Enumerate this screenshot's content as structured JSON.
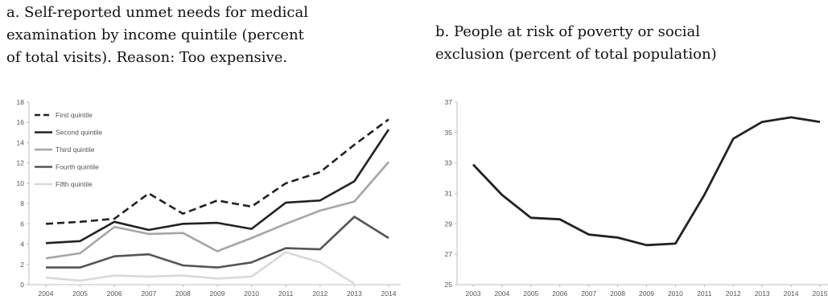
{
  "chart_data": [
    {
      "type": "line",
      "title": "a. Self-reported unmet needs for medical\nexamination by income quintile (percent\nof total visits). Reason: Too expensive.",
      "xlabel": "",
      "ylabel": "",
      "x": [
        "2004",
        "2005",
        "2006",
        "2007",
        "2008",
        "2009",
        "2010",
        "2011",
        "2012",
        "2013",
        "2014"
      ],
      "ylim": [
        0,
        18
      ],
      "yticks": [
        0,
        2,
        4,
        6,
        8,
        10,
        12,
        14,
        16,
        18
      ],
      "grid": false,
      "legend": "top-left",
      "series": [
        {
          "name": "First quintile",
          "color": "#222222",
          "style": "dashed",
          "values": [
            6.0,
            6.2,
            6.5,
            9.0,
            7.0,
            8.3,
            7.7,
            10.0,
            11.1,
            13.8,
            16.3
          ]
        },
        {
          "name": "Second quintile",
          "color": "#222222",
          "style": "solid",
          "values": [
            4.1,
            4.3,
            6.2,
            5.4,
            6.0,
            6.1,
            5.5,
            8.1,
            8.3,
            10.2,
            15.3
          ]
        },
        {
          "name": "Third quintile",
          "color": "#a6a6a6",
          "style": "solid",
          "values": [
            2.6,
            3.1,
            5.7,
            5.0,
            5.1,
            3.3,
            4.6,
            6.0,
            7.3,
            8.2,
            12.1
          ]
        },
        {
          "name": "Fourth quintile",
          "color": "#555555",
          "style": "solid",
          "values": [
            1.7,
            1.7,
            2.8,
            3.0,
            1.9,
            1.7,
            2.2,
            3.6,
            3.5,
            6.7,
            4.6
          ]
        },
        {
          "name": "Fifth quintile",
          "color": "#d9d9d9",
          "style": "solid",
          "values": [
            0.7,
            0.4,
            0.9,
            0.8,
            0.9,
            0.6,
            0.8,
            3.2,
            2.2,
            0.1,
            null
          ]
        }
      ]
    },
    {
      "type": "line",
      "title": "b. People at risk of poverty or social\nexclusion (percent of total population)",
      "xlabel": "",
      "ylabel": "",
      "x": [
        "2003",
        "2004",
        "2005",
        "2006",
        "2007",
        "2008",
        "2009",
        "2010",
        "2011",
        "2012",
        "2013",
        "2014",
        "2015"
      ],
      "ylim": [
        25,
        37
      ],
      "yticks": [
        25,
        27,
        29,
        31,
        33,
        35,
        37
      ],
      "grid": false,
      "series": [
        {
          "color": "#222222",
          "style": "solid",
          "values": [
            32.9,
            30.9,
            29.4,
            29.3,
            28.3,
            28.1,
            27.6,
            27.7,
            30.9,
            34.6,
            35.7,
            36.0,
            35.7
          ]
        }
      ]
    }
  ]
}
